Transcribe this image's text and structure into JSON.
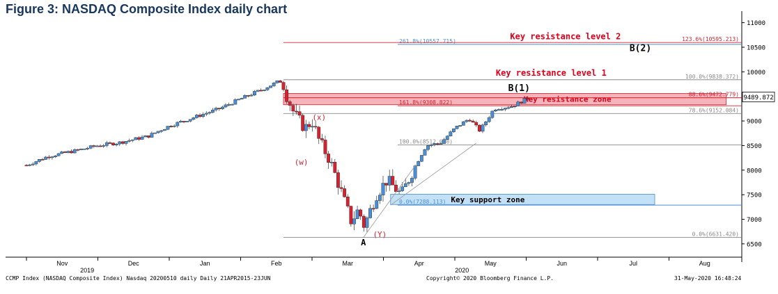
{
  "figure_title": "Figure 3: NASDAQ Composite Index daily chart",
  "colors": {
    "up": "#4a8fd6",
    "down": "#d8202f",
    "resistance_fill": "#f4a6ad",
    "support_fill": "#b8dcf5",
    "red_text": "#e0001b",
    "fib_text": "#8a8a8a",
    "fib_blue": "#4a8fd6"
  },
  "footer": {
    "left": "CCMP Index (NASDAQ Composite Index) Nasdaq 20200510 daily  Daily 21APR2015-23JUN",
    "center": "Copyright© 2020 Bloomberg Finance L.P.",
    "right": "31-May-2020 16:48:24"
  },
  "chart_data": {
    "type": "candlestick",
    "title": "Figure 3: NASDAQ Composite Index daily chart",
    "y_axis": {
      "side": "right",
      "range": [
        6300,
        11150
      ],
      "ticks": [
        6500,
        7000,
        7500,
        8000,
        8500,
        9000,
        9500,
        10000,
        10500,
        11000
      ]
    },
    "last_price_label": "9489.872",
    "x_axis": {
      "months": [
        {
          "label": "Nov",
          "x": 0.5
        },
        {
          "label": "Dec",
          "x": 1.5
        },
        {
          "label": "Jan",
          "x": 2.5
        },
        {
          "label": "Feb",
          "x": 3.5
        },
        {
          "label": "Mar",
          "x": 4.5
        },
        {
          "label": "Apr",
          "x": 5.5
        },
        {
          "label": "May",
          "x": 6.5
        },
        {
          "label": "Jun",
          "x": 7.5
        },
        {
          "label": "Jul",
          "x": 8.5
        },
        {
          "label": "Aug",
          "x": 9.5
        }
      ],
      "years": [
        {
          "label": "2019",
          "x": 0.85
        },
        {
          "label": "2020",
          "x": 6.1
        }
      ]
    },
    "price_path": [
      [
        0,
        8100
      ],
      [
        0.3,
        8280
      ],
      [
        0.7,
        8400
      ],
      [
        1.0,
        8500
      ],
      [
        1.3,
        8560
      ],
      [
        1.7,
        8690
      ],
      [
        2.0,
        8900
      ],
      [
        2.3,
        9050
      ],
      [
        2.7,
        9250
      ],
      [
        3.0,
        9450
      ],
      [
        3.3,
        9640
      ],
      [
        3.55,
        9820
      ],
      [
        3.62,
        9600
      ],
      [
        3.75,
        9150
      ],
      [
        3.9,
        8850
      ],
      [
        4.0,
        9000
      ],
      [
        4.1,
        8600
      ],
      [
        4.25,
        8200
      ],
      [
        4.4,
        7600
      ],
      [
        4.55,
        6950
      ],
      [
        4.65,
        7200
      ],
      [
        4.73,
        6860
      ],
      [
        4.9,
        7500
      ],
      [
        5.05,
        7800
      ],
      [
        5.25,
        7500
      ],
      [
        5.45,
        8100
      ],
      [
        5.6,
        8500
      ],
      [
        5.8,
        8550
      ],
      [
        6.0,
        8850
      ],
      [
        6.2,
        9050
      ],
      [
        6.35,
        8800
      ],
      [
        6.55,
        9250
      ],
      [
        6.8,
        9300
      ],
      [
        7.05,
        9480
      ]
    ],
    "horizontal_levels": [
      {
        "label": "261.8%(10557.715)",
        "value": 10557.715,
        "from_x": 5.2,
        "color_key": "fib_blue"
      },
      {
        "label": "123.6%(10595.213)",
        "value": 10595.213,
        "from_x": 3.6,
        "color_key": "down",
        "label_side": "right"
      },
      {
        "label": "100.0%(9838.372)",
        "value": 9838.372,
        "from_x": 3.6,
        "color_key": "fib_text",
        "label_side": "right"
      },
      {
        "label": "88.6%(9472.779)",
        "value": 9472.779,
        "from_x": 3.6,
        "color_key": "down",
        "label_side": "right"
      },
      {
        "label": "161.8%(9308.822)",
        "value": 9308.822,
        "from_x": 5.2,
        "color_key": "down"
      },
      {
        "label": "78.6%(9152.084)",
        "value": 9152.084,
        "from_x": 3.6,
        "color_key": "fib_text",
        "label_side": "right"
      },
      {
        "label": "100.0%(8512.000)",
        "value": 8512.0,
        "from_x": 5.2,
        "color_key": "fib_text"
      },
      {
        "label": "0.0%(7288.113)",
        "value": 7288.113,
        "from_x": 5.2,
        "color_key": "fib_blue"
      },
      {
        "label": "0.0%(6631.420)",
        "value": 6631.42,
        "from_x": 3.6,
        "color_key": "fib_text",
        "label_side": "right"
      }
    ],
    "zones": [
      {
        "label": "Key resistance zone",
        "y_low": 9330,
        "y_high": 9560,
        "from_x": 3.6,
        "to_x": 9.8,
        "fill_key": "resistance_fill",
        "text_key": "red_text"
      },
      {
        "label": "Key support zone",
        "y_low": 7300,
        "y_high": 7510,
        "from_x": 5.1,
        "to_x": 8.8,
        "fill_key": "support_fill",
        "text_key": "black"
      }
    ],
    "annotations": [
      {
        "text": "Key resistance level 2",
        "x": 7.55,
        "y": 10665,
        "color_key": "red_text",
        "bold": true
      },
      {
        "text": "Key resistance level 1",
        "x": 7.35,
        "y": 9920,
        "color_key": "red_text",
        "bold": true
      },
      {
        "text": "B(2)",
        "x": 8.6,
        "y": 10420,
        "color_key": "black",
        "bold": true,
        "size": 13
      },
      {
        "text": "B(1)",
        "x": 6.9,
        "y": 9610,
        "color_key": "black",
        "bold": true,
        "size": 13
      },
      {
        "text": "(x)",
        "x": 4.1,
        "y": 9020,
        "color_key": "down",
        "bold": false,
        "size": 11
      },
      {
        "text": "(w)",
        "x": 3.85,
        "y": 8110,
        "color_key": "down",
        "bold": false,
        "size": 11
      },
      {
        "text": "A",
        "x": 4.72,
        "y": 6470,
        "color_key": "black",
        "bold": true,
        "size": 12
      },
      {
        "text": "(Y)",
        "x": 4.95,
        "y": 6640,
        "color_key": "down",
        "bold": false,
        "size": 11
      }
    ]
  }
}
